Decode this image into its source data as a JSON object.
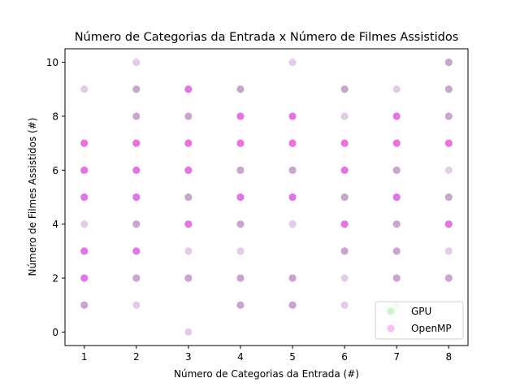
{
  "chart_data": {
    "type": "scatter",
    "title": "Número de Categorias da Entrada x Número de Filmes Assistidos",
    "xlabel": "Número de Categorias da Entrada (#)",
    "ylabel": "Número de Filmes Assistidos (#)",
    "xlim": [
      0.63,
      8.37
    ],
    "ylim": [
      -0.5,
      10.5
    ],
    "xticks": [
      1,
      2,
      3,
      4,
      5,
      6,
      7,
      8
    ],
    "yticks": [
      0,
      2,
      4,
      6,
      8,
      10
    ],
    "legend_position": "bottom-right",
    "series": [
      {
        "name": "GPU",
        "color": "#90ee90",
        "points": [
          [
            1,
            1
          ],
          [
            1,
            2
          ],
          [
            1,
            3
          ],
          [
            1,
            4
          ],
          [
            1,
            5
          ],
          [
            1,
            6
          ],
          [
            1,
            7
          ],
          [
            1,
            9
          ],
          [
            2,
            1
          ],
          [
            2,
            2
          ],
          [
            2,
            3
          ],
          [
            2,
            4
          ],
          [
            2,
            5
          ],
          [
            2,
            6
          ],
          [
            2,
            7
          ],
          [
            2,
            8
          ],
          [
            2,
            9
          ],
          [
            2,
            10
          ],
          [
            3,
            0
          ],
          [
            3,
            2
          ],
          [
            3,
            3
          ],
          [
            3,
            4
          ],
          [
            3,
            5
          ],
          [
            3,
            6
          ],
          [
            3,
            7
          ],
          [
            3,
            8
          ],
          [
            3,
            9
          ],
          [
            4,
            1
          ],
          [
            4,
            2
          ],
          [
            4,
            3
          ],
          [
            4,
            4
          ],
          [
            4,
            5
          ],
          [
            4,
            6
          ],
          [
            4,
            7
          ],
          [
            4,
            8
          ],
          [
            4,
            9
          ],
          [
            5,
            1
          ],
          [
            5,
            2
          ],
          [
            5,
            4
          ],
          [
            5,
            5
          ],
          [
            5,
            6
          ],
          [
            5,
            7
          ],
          [
            5,
            8
          ],
          [
            5,
            10
          ],
          [
            6,
            1
          ],
          [
            6,
            2
          ],
          [
            6,
            3
          ],
          [
            6,
            4
          ],
          [
            6,
            5
          ],
          [
            6,
            6
          ],
          [
            6,
            7
          ],
          [
            6,
            8
          ],
          [
            6,
            9
          ],
          [
            7,
            1
          ],
          [
            7,
            2
          ],
          [
            7,
            3
          ],
          [
            7,
            4
          ],
          [
            7,
            5
          ],
          [
            7,
            6
          ],
          [
            7,
            7
          ],
          [
            7,
            8
          ],
          [
            7,
            9
          ],
          [
            8,
            2
          ],
          [
            8,
            3
          ],
          [
            8,
            4
          ],
          [
            8,
            5
          ],
          [
            8,
            6
          ],
          [
            8,
            7
          ],
          [
            8,
            8
          ],
          [
            8,
            9
          ],
          [
            8,
            10
          ]
        ]
      },
      {
        "name": "OpenMP",
        "color": "#ee82ee",
        "points": [
          [
            1,
            1
          ],
          [
            1,
            2
          ],
          [
            1,
            3
          ],
          [
            1,
            4
          ],
          [
            1,
            5
          ],
          [
            1,
            6
          ],
          [
            1,
            7
          ],
          [
            1,
            9
          ],
          [
            2,
            1
          ],
          [
            2,
            2
          ],
          [
            2,
            3
          ],
          [
            2,
            4
          ],
          [
            2,
            5
          ],
          [
            2,
            6
          ],
          [
            2,
            7
          ],
          [
            2,
            8
          ],
          [
            2,
            9
          ],
          [
            2,
            10
          ],
          [
            3,
            0
          ],
          [
            3,
            2
          ],
          [
            3,
            3
          ],
          [
            3,
            4
          ],
          [
            3,
            5
          ],
          [
            3,
            6
          ],
          [
            3,
            7
          ],
          [
            3,
            8
          ],
          [
            3,
            9
          ],
          [
            4,
            1
          ],
          [
            4,
            2
          ],
          [
            4,
            3
          ],
          [
            4,
            4
          ],
          [
            4,
            5
          ],
          [
            4,
            6
          ],
          [
            4,
            7
          ],
          [
            4,
            8
          ],
          [
            4,
            9
          ],
          [
            5,
            1
          ],
          [
            5,
            2
          ],
          [
            5,
            4
          ],
          [
            5,
            5
          ],
          [
            5,
            6
          ],
          [
            5,
            7
          ],
          [
            5,
            8
          ],
          [
            5,
            10
          ],
          [
            6,
            1
          ],
          [
            6,
            2
          ],
          [
            6,
            3
          ],
          [
            6,
            4
          ],
          [
            6,
            5
          ],
          [
            6,
            6
          ],
          [
            6,
            7
          ],
          [
            6,
            8
          ],
          [
            6,
            9
          ],
          [
            7,
            1
          ],
          [
            7,
            2
          ],
          [
            7,
            3
          ],
          [
            7,
            4
          ],
          [
            7,
            5
          ],
          [
            7,
            6
          ],
          [
            7,
            7
          ],
          [
            7,
            8
          ],
          [
            7,
            9
          ],
          [
            8,
            2
          ],
          [
            8,
            3
          ],
          [
            8,
            4
          ],
          [
            8,
            5
          ],
          [
            8,
            6
          ],
          [
            8,
            7
          ],
          [
            8,
            8
          ],
          [
            8,
            9
          ],
          [
            8,
            10
          ]
        ]
      }
    ],
    "overlap_color": "#9b59a6",
    "highlight_color": "#d62fd6",
    "highlighted_points": [
      [
        1,
        2
      ],
      [
        1,
        3
      ],
      [
        1,
        5
      ],
      [
        1,
        6
      ],
      [
        1,
        7
      ],
      [
        2,
        3
      ],
      [
        2,
        5
      ],
      [
        2,
        6
      ],
      [
        2,
        7
      ],
      [
        3,
        4
      ],
      [
        3,
        6
      ],
      [
        3,
        7
      ],
      [
        3,
        9
      ],
      [
        4,
        5
      ],
      [
        4,
        7
      ],
      [
        4,
        8
      ],
      [
        5,
        5
      ],
      [
        5,
        7
      ],
      [
        5,
        8
      ],
      [
        6,
        4
      ],
      [
        6,
        6
      ],
      [
        6,
        7
      ],
      [
        7,
        5
      ],
      [
        7,
        7
      ],
      [
        7,
        8
      ],
      [
        8,
        4
      ],
      [
        8,
        7
      ]
    ],
    "faint_points": [
      [
        1,
        4
      ],
      [
        1,
        9
      ],
      [
        2,
        1
      ],
      [
        2,
        10
      ],
      [
        3,
        0
      ],
      [
        3,
        3
      ],
      [
        4,
        3
      ],
      [
        5,
        4
      ],
      [
        5,
        10
      ],
      [
        6,
        1
      ],
      [
        6,
        2
      ],
      [
        6,
        8
      ],
      [
        7,
        1
      ],
      [
        7,
        9
      ],
      [
        8,
        3
      ],
      [
        8,
        6
      ]
    ]
  }
}
